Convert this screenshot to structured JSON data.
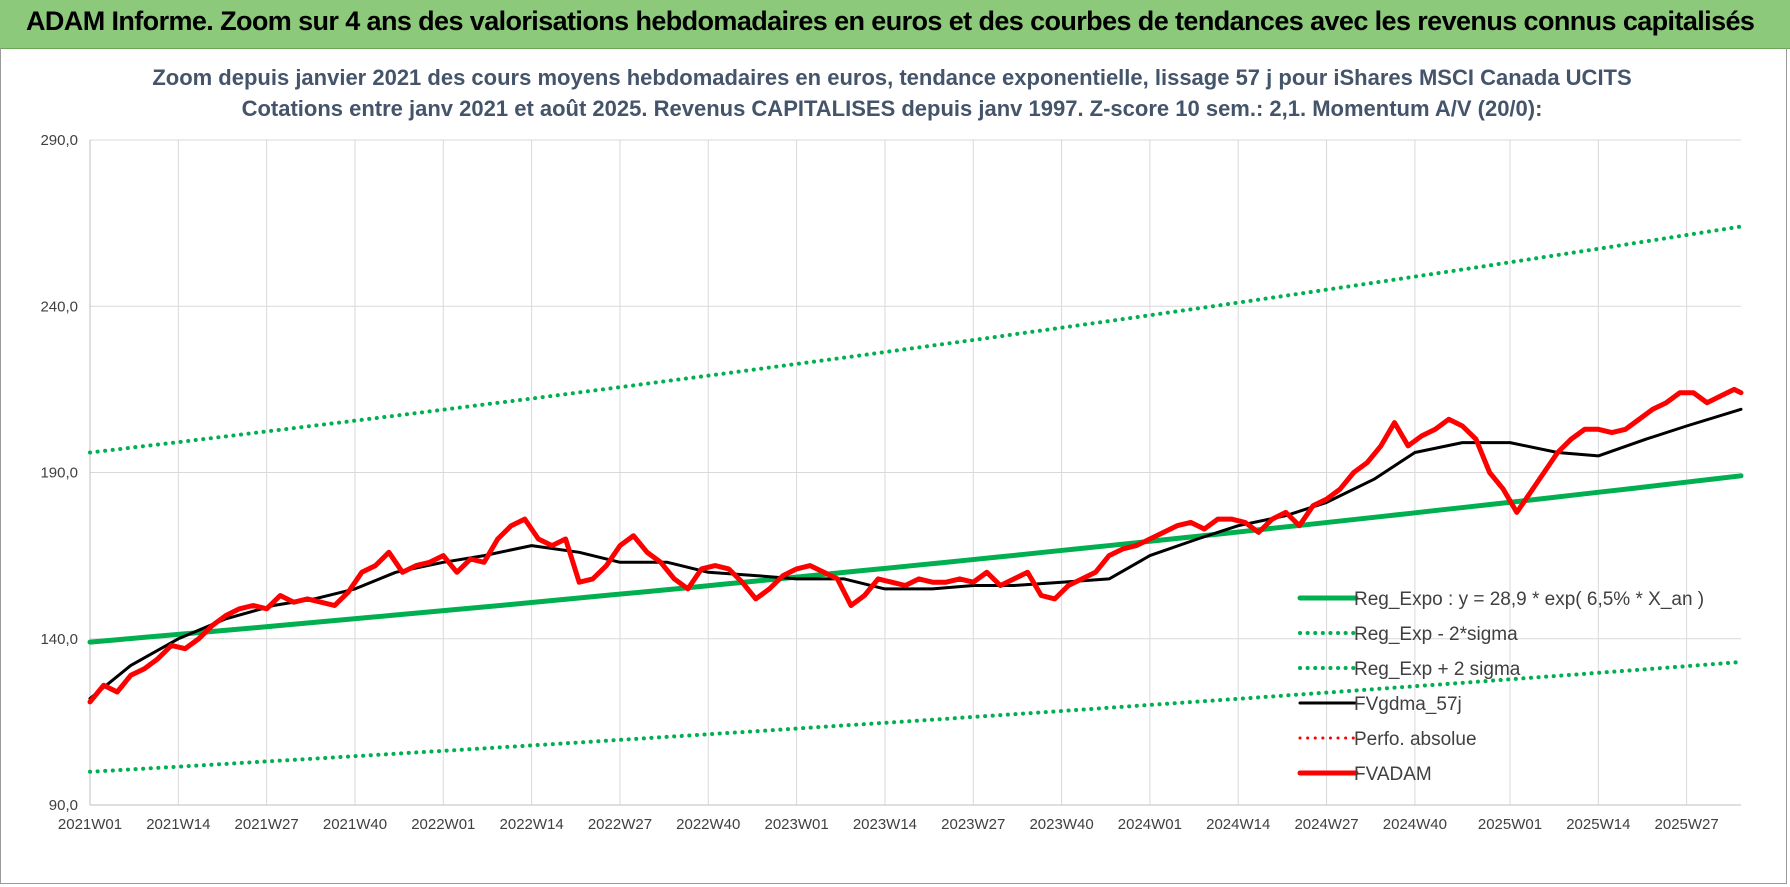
{
  "banner": {
    "title": "ADAM Informe. Zoom sur 4 ans des valorisations hebdomadaires en euros et des courbes de tendances avec les revenus connus capitalisés",
    "color": "#8cc97b"
  },
  "chart_data": {
    "type": "line",
    "subtitle_line1": "Zoom depuis janvier 2021 des cours moyens hebdomadaires en euros, tendance exponentielle, lissage 57 j pour iShares MSCI Canada UCITS",
    "subtitle_line2": "Cotations entre janv 2021 et août 2025. Revenus CAPITALISES depuis janv 1997. Z-score 10 sem.: 2,1. Momentum A/V (20/0):",
    "ylim": [
      90,
      290
    ],
    "yticks": [
      "90,0",
      "140,0",
      "190,0",
      "240,0",
      "290,0"
    ],
    "ytick_values": [
      90,
      140,
      190,
      240,
      290
    ],
    "xlim": [
      0,
      243
    ],
    "xticks": [
      "2021W01",
      "2021W14",
      "2021W27",
      "2021W40",
      "2022W01",
      "2022W14",
      "2022W27",
      "2022W40",
      "2023W01",
      "2023W14",
      "2023W27",
      "2023W40",
      "2024W01",
      "2024W14",
      "2024W27",
      "2024W40",
      "2025W01",
      "2025W14",
      "2025W27"
    ],
    "xtick_positions": [
      0,
      13,
      26,
      39,
      52,
      65,
      78,
      91,
      104,
      117,
      130,
      143,
      156,
      169,
      182,
      195,
      209,
      222,
      235
    ],
    "grid": true,
    "legend_position": "bottom-right",
    "series": [
      {
        "name": "Reg_Expo : y = 28,9 * exp( 6,5% *  X_an )",
        "color": "#00b050",
        "style": "solid",
        "x": [
          0,
          243
        ],
        "values": [
          139,
          189
        ],
        "growth": "exponential"
      },
      {
        "name": "Reg_Exp - 2*sigma",
        "color": "#00b050",
        "style": "dotted",
        "x": [
          0,
          243
        ],
        "values": [
          100,
          133
        ],
        "growth": "exponential"
      },
      {
        "name": "Reg_Exp + 2 sigma",
        "color": "#00b050",
        "style": "dotted",
        "x": [
          0,
          243
        ],
        "values": [
          196,
          264
        ],
        "growth": "exponential"
      },
      {
        "name": "FVgdma_57j",
        "color": "#000000",
        "style": "solid",
        "x": [
          0,
          6,
          13,
          20,
          27,
          33,
          39,
          45,
          52,
          58,
          65,
          72,
          78,
          85,
          91,
          98,
          104,
          111,
          117,
          124,
          130,
          136,
          143,
          150,
          156,
          163,
          169,
          176,
          182,
          189,
          195,
          202,
          209,
          216,
          222,
          229,
          235,
          243
        ],
        "values": [
          122,
          132,
          140,
          146,
          150,
          152,
          155,
          160,
          163,
          165,
          168,
          166,
          163,
          163,
          160,
          159,
          158,
          158,
          155,
          155,
          156,
          156,
          157,
          158,
          165,
          170,
          174,
          177,
          181,
          188,
          196,
          199,
          199,
          196,
          195,
          200,
          204,
          209
        ]
      },
      {
        "name": "Perfo. absolue",
        "color": "#ff0000",
        "style": "dotted",
        "x": [],
        "values": []
      },
      {
        "name": "FVADAM",
        "color": "#ff0000",
        "style": "solid",
        "x": [
          0,
          2,
          4,
          6,
          8,
          10,
          12,
          14,
          16,
          18,
          20,
          22,
          24,
          26,
          28,
          30,
          32,
          34,
          36,
          38,
          40,
          42,
          44,
          46,
          48,
          50,
          52,
          54,
          56,
          58,
          60,
          62,
          64,
          66,
          68,
          70,
          72,
          74,
          76,
          78,
          80,
          82,
          84,
          86,
          88,
          90,
          92,
          94,
          96,
          98,
          100,
          102,
          104,
          106,
          108,
          110,
          112,
          114,
          116,
          118,
          120,
          122,
          124,
          126,
          128,
          130,
          132,
          134,
          136,
          138,
          140,
          142,
          144,
          146,
          148,
          150,
          152,
          154,
          156,
          158,
          160,
          162,
          164,
          166,
          168,
          170,
          172,
          174,
          176,
          178,
          180,
          182,
          184,
          186,
          188,
          190,
          192,
          194,
          196,
          198,
          200,
          202,
          204,
          206,
          208,
          210,
          212,
          214,
          216,
          218,
          220,
          222,
          224,
          226,
          228,
          230,
          232,
          234,
          236,
          238,
          240,
          242,
          243
        ],
        "values": [
          121,
          126,
          124,
          129,
          131,
          134,
          138,
          137,
          140,
          144,
          147,
          149,
          150,
          149,
          153,
          151,
          152,
          151,
          150,
          154,
          160,
          162,
          166,
          160,
          162,
          163,
          165,
          160,
          164,
          163,
          170,
          174,
          176,
          170,
          168,
          170,
          157,
          158,
          162,
          168,
          171,
          166,
          163,
          158,
          155,
          161,
          162,
          161,
          157,
          152,
          155,
          159,
          161,
          162,
          160,
          158,
          150,
          153,
          158,
          157,
          156,
          158,
          157,
          157,
          158,
          157,
          160,
          156,
          158,
          160,
          153,
          152,
          156,
          158,
          160,
          165,
          167,
          168,
          170,
          172,
          174,
          175,
          173,
          176,
          176,
          175,
          172,
          176,
          178,
          174,
          180,
          182,
          185,
          190,
          193,
          198,
          205,
          198,
          201,
          203,
          206,
          204,
          200,
          190,
          185,
          178,
          184,
          190,
          196,
          200,
          203,
          203,
          202,
          203,
          206,
          209,
          211,
          214,
          214,
          211,
          213,
          215,
          214
        ]
      }
    ]
  }
}
